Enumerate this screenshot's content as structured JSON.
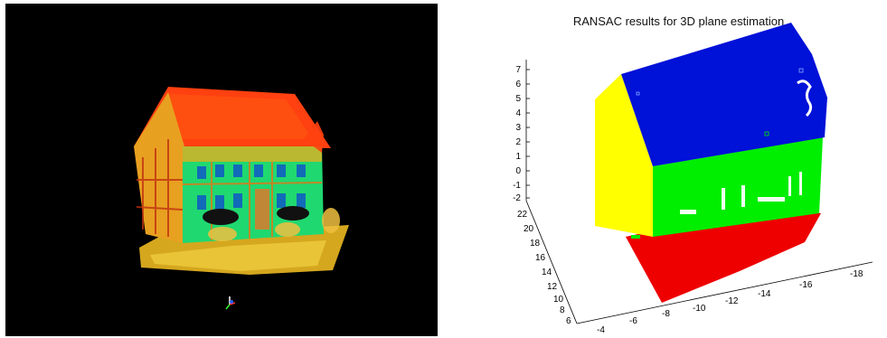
{
  "plot": {
    "title": "RANSAC results for 3D plane estimation",
    "z_ticks": [
      "7",
      "6",
      "5",
      "4",
      "3",
      "2",
      "1",
      "0",
      "-1",
      "-2"
    ],
    "y_ticks": [
      "22",
      "20",
      "18",
      "16",
      "14",
      "12",
      "10",
      "8",
      "6"
    ],
    "x_ticks": [
      "-4",
      "-6",
      "-8",
      "-10",
      "-12",
      "-14",
      "-16",
      "-18"
    ]
  },
  "colors": {
    "roof_plane": "#0011d8",
    "facade_plane": "#00ee00",
    "gable_plane": "#ffff00",
    "ground_plane": "#ee0000",
    "pointcloud_background": "#000000"
  }
}
